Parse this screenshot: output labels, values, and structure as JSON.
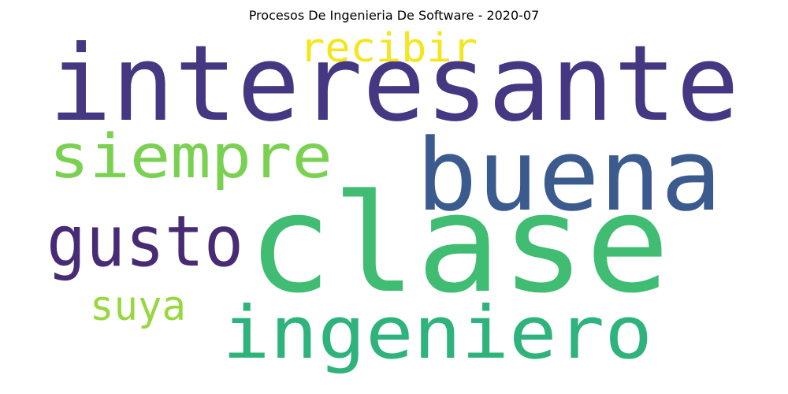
{
  "title": "Procesos De Ingenieria De Software - 2020-07",
  "words": [
    {
      "text": "interesante",
      "color": "#453781"
    },
    {
      "text": "recibir",
      "color": "#f4e61e"
    },
    {
      "text": "buena",
      "color": "#3b5a8d"
    },
    {
      "text": "siempre",
      "color": "#7ad151"
    },
    {
      "text": "gusto",
      "color": "#472b74"
    },
    {
      "text": "clase",
      "color": "#40bd72"
    },
    {
      "text": "suya",
      "color": "#98d83e"
    },
    {
      "text": "ingeniero",
      "color": "#2eb37c"
    }
  ]
}
